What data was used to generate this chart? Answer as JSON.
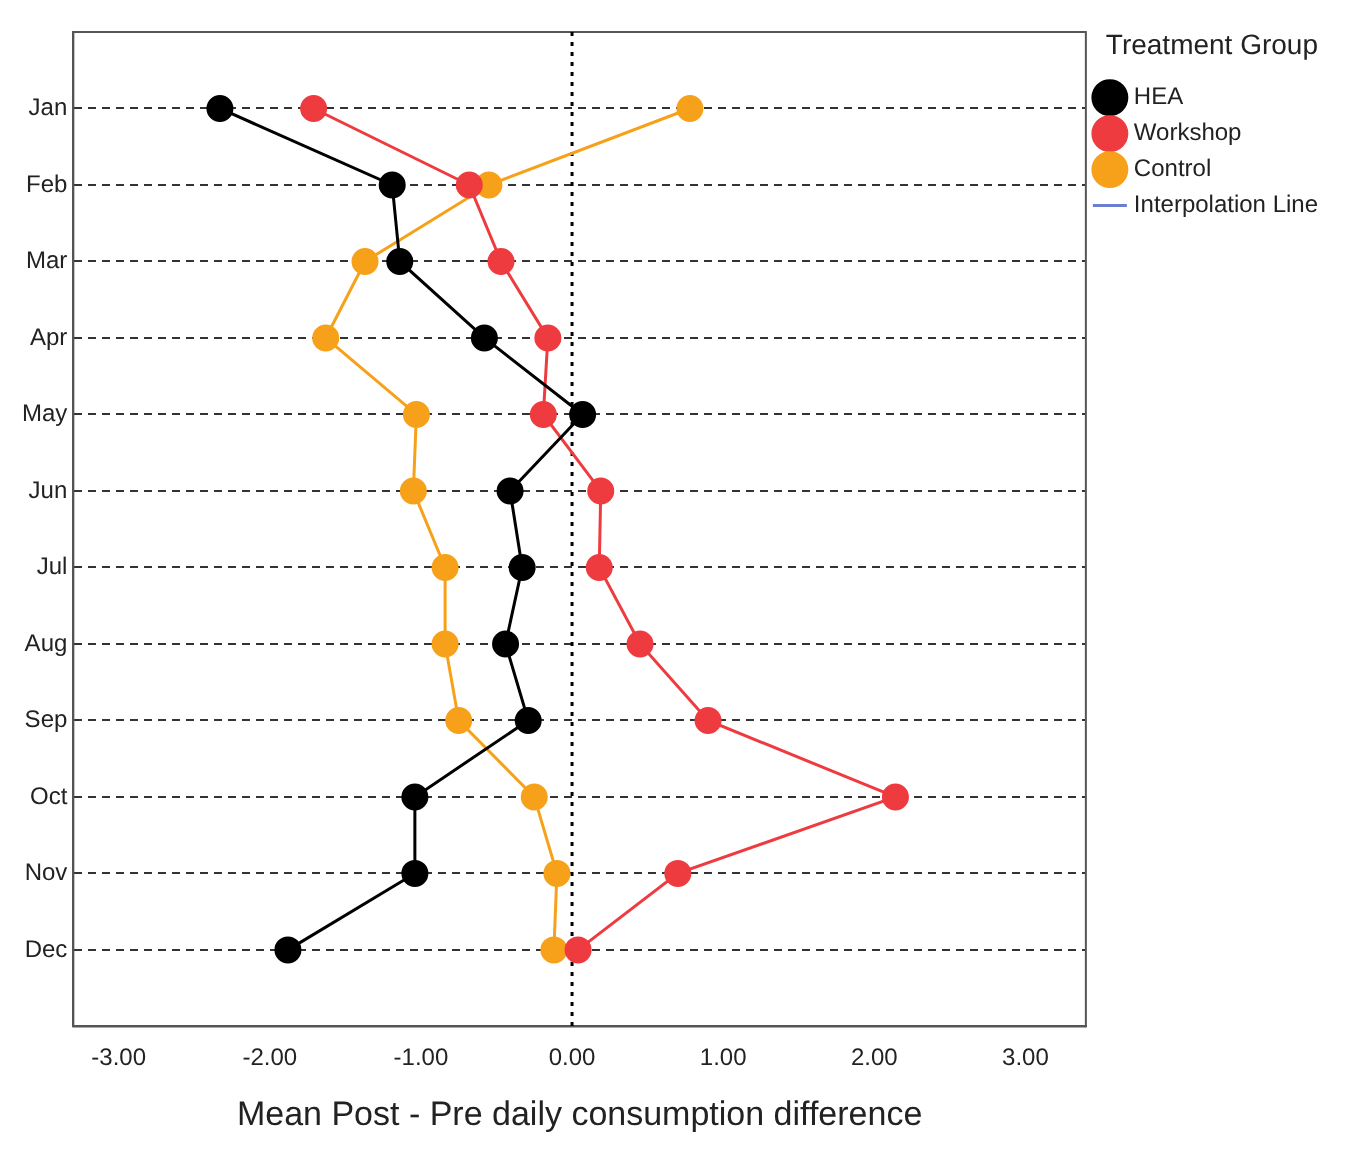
{
  "chart_data": {
    "type": "line",
    "orientation": "horizontal",
    "xlabel": "Mean Post - Pre daily consumption difference",
    "legend_title": "Treatment Group",
    "legend": "top right",
    "grid": "y",
    "line_style": "solid",
    "marker": "circle",
    "categories": [
      "Jan",
      "Feb",
      "Mar",
      "Apr",
      "May",
      "Jun",
      "Jul",
      "Aug",
      "Sep",
      "Oct",
      "Nov",
      "Dec"
    ],
    "xlim": [
      -3.3,
      3.4
    ],
    "xticks": [
      {
        "value": -3,
        "label": "-3.00"
      },
      {
        "value": -2,
        "label": "-2.00"
      },
      {
        "value": -1,
        "label": "-1.00"
      },
      {
        "value": 0,
        "label": "0.00"
      },
      {
        "value": 1,
        "label": "1.00"
      },
      {
        "value": 2,
        "label": "2.00"
      },
      {
        "value": 3,
        "label": "3.00"
      }
    ],
    "series": [
      {
        "name": "HEA",
        "color": "#000000",
        "values": [
          -2.33,
          -1.19,
          -1.14,
          -0.58,
          0.07,
          -0.41,
          -0.33,
          -0.44,
          -0.29,
          -1.04,
          -1.04,
          -1.88
        ]
      },
      {
        "name": "Workshop",
        "color": "#ee3b3f",
        "values": [
          -1.71,
          -0.68,
          -0.47,
          -0.16,
          -0.19,
          0.19,
          0.18,
          0.45,
          0.9,
          2.14,
          0.7,
          0.04
        ]
      },
      {
        "name": "Control",
        "color": "#f7a11a",
        "values": [
          0.78,
          -0.55,
          -1.37,
          -1.63,
          -1.03,
          -1.05,
          -0.84,
          -0.84,
          -0.75,
          -0.25,
          -0.1,
          -0.12
        ]
      },
      {
        "name": "Interpolation Line",
        "color": "#6a7fd0",
        "marker": "none",
        "values": [
          null,
          null,
          null,
          null,
          null,
          null,
          null,
          null,
          null,
          null,
          null,
          null
        ]
      }
    ],
    "ref_lines": [
      {
        "axis": "x",
        "value": 0,
        "line_style": "dotted",
        "color": "#000000"
      }
    ]
  }
}
